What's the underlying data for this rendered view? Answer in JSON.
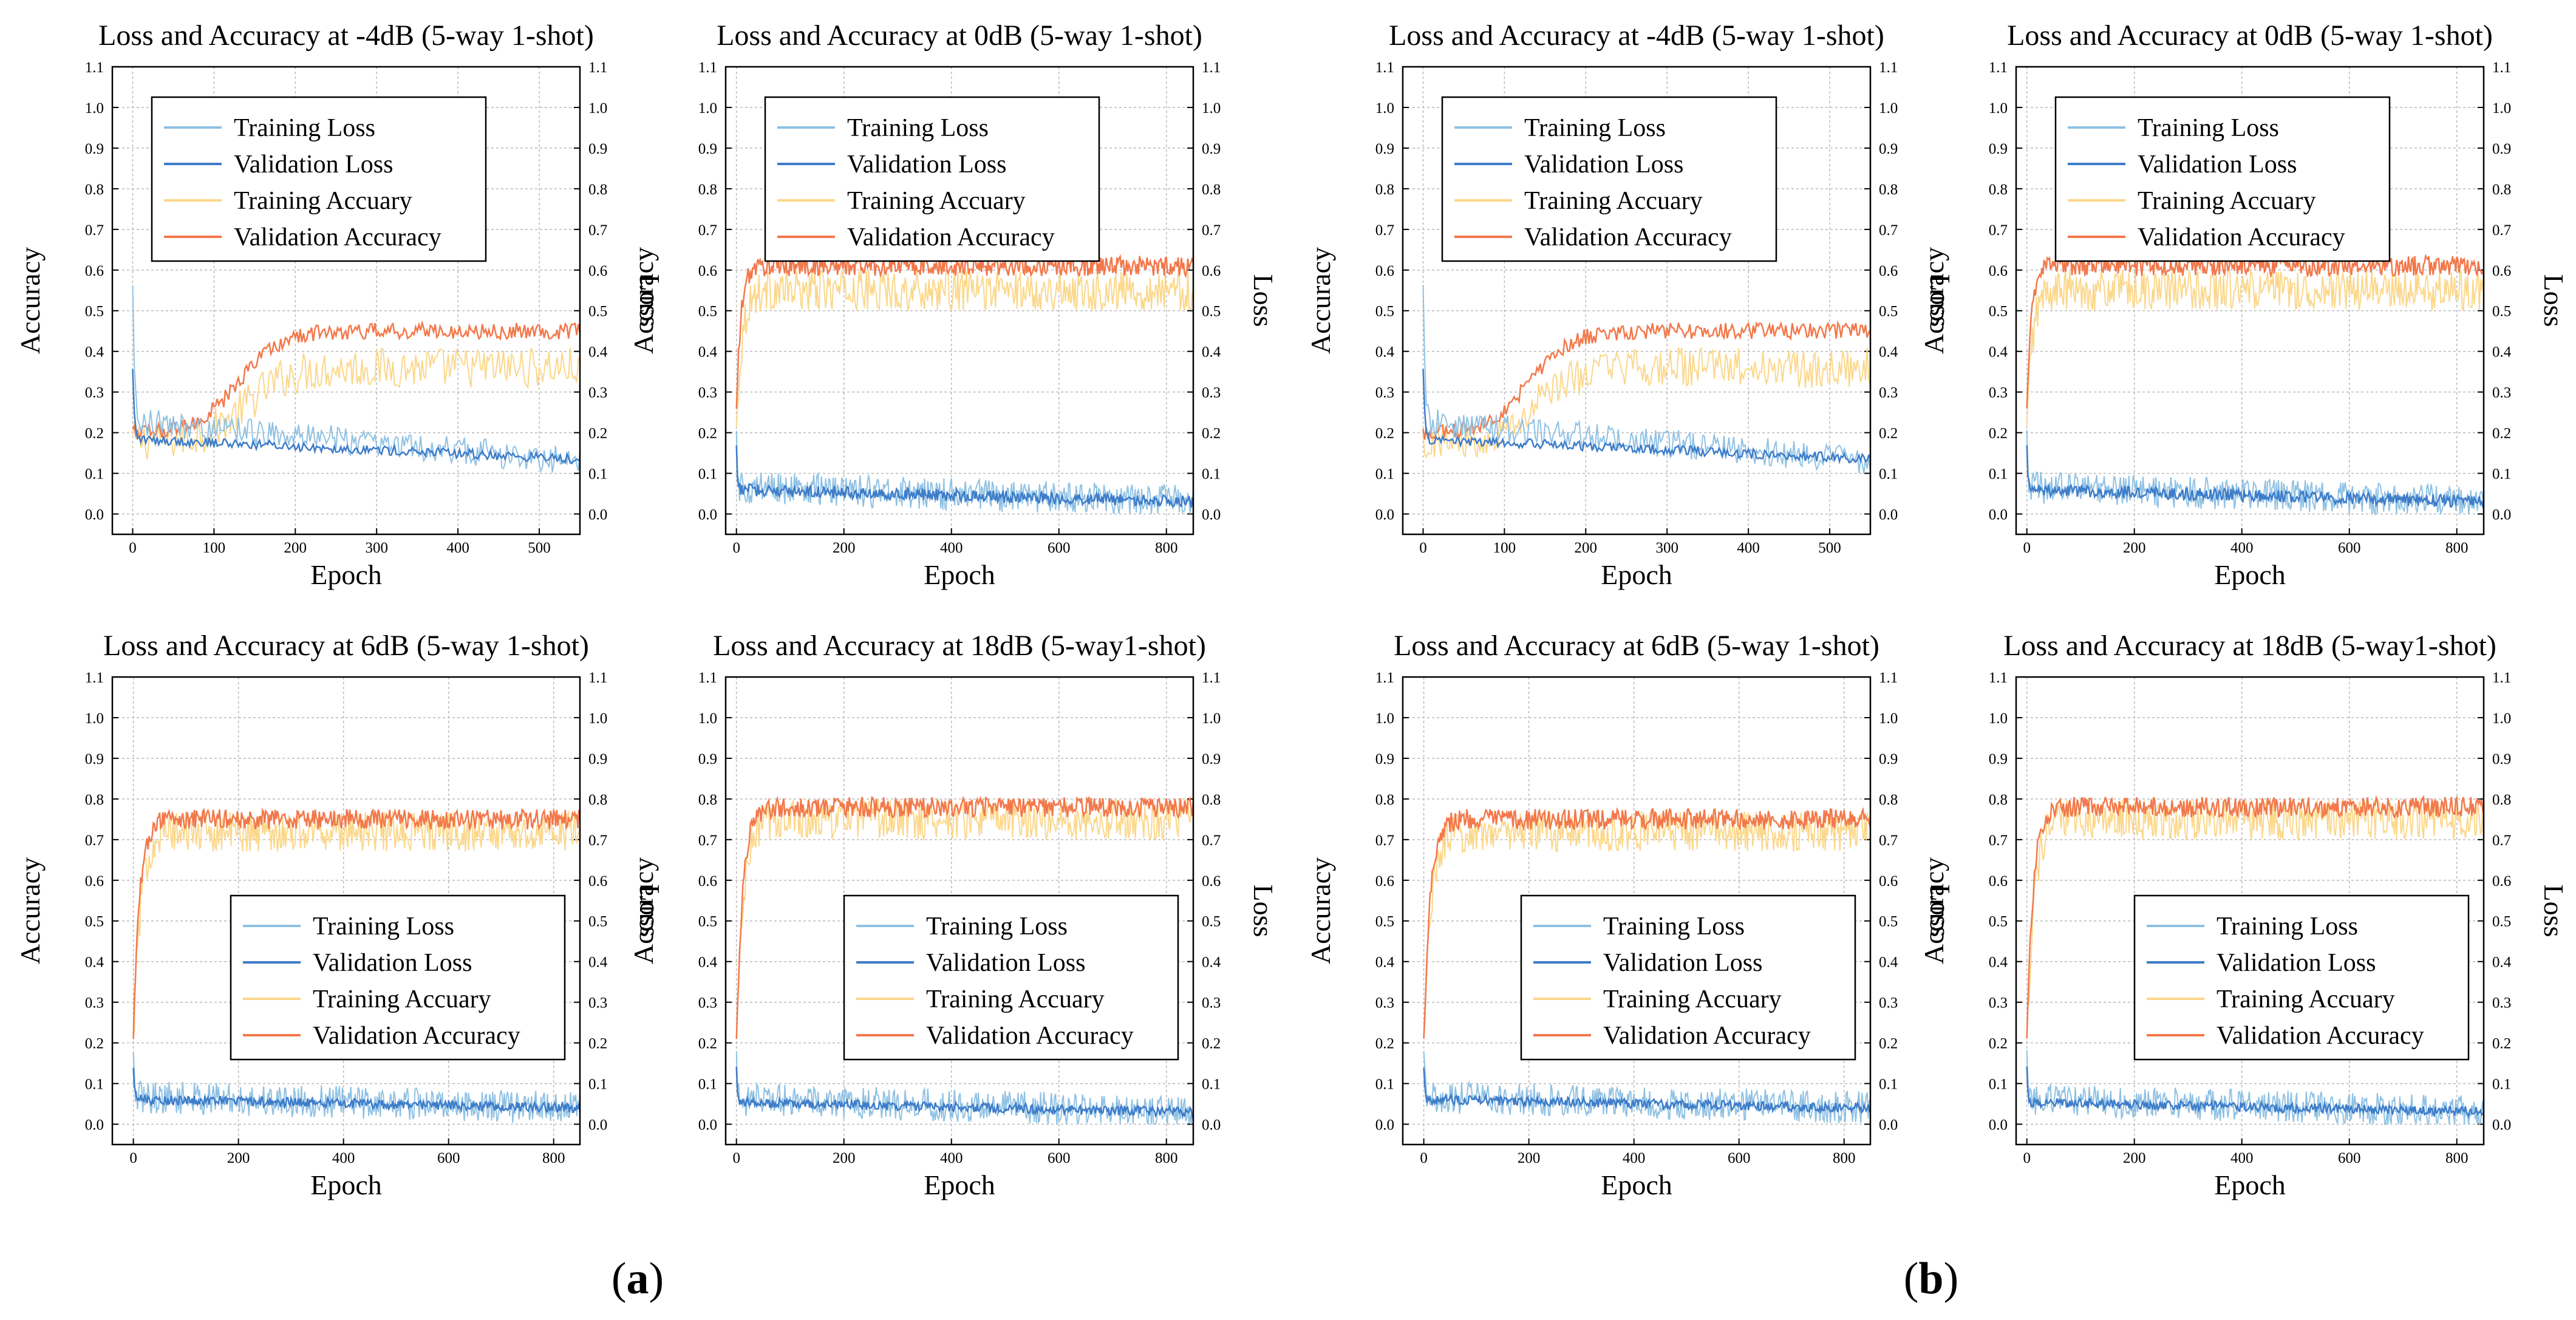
{
  "panel_labels": [
    {
      "open": "(",
      "letter": "a",
      "close": ")"
    },
    {
      "open": "(",
      "letter": "b",
      "close": ")"
    }
  ],
  "colors": {
    "training_loss": "#8fc1e3",
    "validation_loss": "#3d7cc9",
    "training_accuracy": "#fbd78a",
    "validation_accuracy": "#f2784b",
    "grid": "#b9b9b9"
  },
  "chart_data": [
    {
      "panel": "a",
      "row": 0,
      "col": 0,
      "type": "line",
      "title": "Loss and Accuracy at -4dB (5-way 1-shot)",
      "xlabel": "Epoch",
      "ylabel_left": "Accuracy",
      "ylabel_right": "Loss",
      "xlim": [
        -25,
        550
      ],
      "ylim": [
        -0.05,
        1.1
      ],
      "xticks": [
        "0",
        "100",
        "200",
        "300",
        "400",
        "500"
      ],
      "yticks": [
        "0.0",
        "0.1",
        "0.2",
        "0.3",
        "0.4",
        "0.5",
        "0.6",
        "0.7",
        "0.8",
        "0.9",
        "1.0",
        "1.1"
      ],
      "legend_position": "upper-left",
      "legend": [
        "Training Loss",
        "Validation Loss",
        "Training Accuary",
        "Validation Accuracy"
      ],
      "epochs": 550,
      "series_profile": {
        "training_loss": {
          "start": 0.45,
          "end": 0.13,
          "noise": 0.035
        },
        "validation_loss": {
          "start": 0.3,
          "end": 0.135,
          "noise": 0.012
        },
        "training_accuracy": {
          "start": 0.18,
          "plateau": 0.36,
          "rise_epoch": 140,
          "noise": 0.05
        },
        "validation_accuracy": {
          "start": 0.2,
          "plateau": 0.45,
          "rise_epoch": 130,
          "noise": 0.02
        }
      }
    },
    {
      "panel": "a",
      "row": 0,
      "col": 1,
      "type": "line",
      "title": "Loss and Accuracy at 0dB (5-way 1-shot)",
      "xlabel": "Epoch",
      "ylabel_left": "Accuracy",
      "ylabel_right": "Loss",
      "xlim": [
        -20,
        850
      ],
      "ylim": [
        -0.05,
        1.1
      ],
      "xticks": [
        "0",
        "200",
        "400",
        "600",
        "800"
      ],
      "yticks": [
        "0.0",
        "0.1",
        "0.2",
        "0.3",
        "0.4",
        "0.5",
        "0.6",
        "0.7",
        "0.8",
        "0.9",
        "1.0",
        "1.1"
      ],
      "legend_position": "upper-left",
      "legend": [
        "Training Loss",
        "Validation Loss",
        "Training Accuary",
        "Validation Accuracy"
      ],
      "epochs": 850,
      "series_profile": {
        "training_loss": {
          "start": 0.15,
          "end": 0.03,
          "noise": 0.04
        },
        "validation_loss": {
          "start": 0.13,
          "end": 0.03,
          "noise": 0.015
        },
        "training_accuracy": {
          "start": 0.2,
          "plateau": 0.55,
          "rise_epoch": 30,
          "noise": 0.05
        },
        "validation_accuracy": {
          "start": 0.25,
          "plateau": 0.61,
          "rise_epoch": 25,
          "noise": 0.025
        }
      }
    },
    {
      "panel": "a",
      "row": 1,
      "col": 0,
      "type": "line",
      "title": "Loss and Accuracy at 6dB (5-way 1-shot)",
      "xlabel": "Epoch",
      "ylabel_left": "Accuracy",
      "ylabel_right": "Loss",
      "xlim": [
        -40,
        850
      ],
      "ylim": [
        -0.05,
        1.1
      ],
      "xticks": [
        "0",
        "200",
        "400",
        "600",
        "800"
      ],
      "yticks": [
        "0.0",
        "0.1",
        "0.2",
        "0.3",
        "0.4",
        "0.5",
        "0.6",
        "0.7",
        "0.8",
        "0.9",
        "1.0",
        "1.1"
      ],
      "legend_position": "lower-right",
      "legend": [
        "Training Loss",
        "Validation Loss",
        "Training Accuary",
        "Validation Accuracy"
      ],
      "epochs": 850,
      "series_profile": {
        "training_loss": {
          "start": 0.13,
          "end": 0.04,
          "noise": 0.04
        },
        "validation_loss": {
          "start": 0.11,
          "end": 0.04,
          "noise": 0.012
        },
        "training_accuracy": {
          "start": 0.2,
          "plateau": 0.72,
          "rise_epoch": 40,
          "noise": 0.05
        },
        "validation_accuracy": {
          "start": 0.2,
          "plateau": 0.75,
          "rise_epoch": 35,
          "noise": 0.025
        }
      }
    },
    {
      "panel": "a",
      "row": 1,
      "col": 1,
      "type": "line",
      "title": "Loss and Accuracy at 18dB (5-way1-shot)",
      "xlabel": "Epoch",
      "ylabel_left": "Accuracy",
      "ylabel_right": "Loss",
      "xlim": [
        -20,
        850
      ],
      "ylim": [
        -0.05,
        1.1
      ],
      "xticks": [
        "0",
        "200",
        "400",
        "600",
        "800"
      ],
      "yticks": [
        "0.0",
        "0.1",
        "0.2",
        "0.3",
        "0.4",
        "0.5",
        "0.6",
        "0.7",
        "0.8",
        "0.9",
        "1.0",
        "1.1"
      ],
      "legend_position": "lower-right",
      "legend": [
        "Training Loss",
        "Validation Loss",
        "Training Accuary",
        "Validation Accuracy"
      ],
      "epochs": 850,
      "series_profile": {
        "training_loss": {
          "start": 0.13,
          "end": 0.03,
          "noise": 0.04
        },
        "validation_loss": {
          "start": 0.11,
          "end": 0.03,
          "noise": 0.012
        },
        "training_accuracy": {
          "start": 0.2,
          "plateau": 0.75,
          "rise_epoch": 40,
          "noise": 0.05
        },
        "validation_accuracy": {
          "start": 0.2,
          "plateau": 0.78,
          "rise_epoch": 35,
          "noise": 0.025
        }
      }
    },
    {
      "panel": "b",
      "row": 0,
      "col": 0,
      "type": "line",
      "title": "Loss and Accuracy at -4dB (5-way 1-shot)",
      "xlabel": "Epoch",
      "ylabel_left": "Accuracy",
      "ylabel_right": "Loss",
      "xlim": [
        -25,
        550
      ],
      "ylim": [
        -0.05,
        1.1
      ],
      "xticks": [
        "0",
        "100",
        "200",
        "300",
        "400",
        "500"
      ],
      "yticks": [
        "0.0",
        "0.1",
        "0.2",
        "0.3",
        "0.4",
        "0.5",
        "0.6",
        "0.7",
        "0.8",
        "0.9",
        "1.0",
        "1.1"
      ],
      "legend_position": "upper-left",
      "legend": [
        "Training Loss",
        "Validation Loss",
        "Training Accuary",
        "Validation Accuracy"
      ],
      "epochs": 550,
      "series_profile": {
        "training_loss": {
          "start": 0.45,
          "end": 0.13,
          "noise": 0.035
        },
        "validation_loss": {
          "start": 0.3,
          "end": 0.135,
          "noise": 0.012
        },
        "training_accuracy": {
          "start": 0.18,
          "plateau": 0.36,
          "rise_epoch": 140,
          "noise": 0.05
        },
        "validation_accuracy": {
          "start": 0.2,
          "plateau": 0.45,
          "rise_epoch": 130,
          "noise": 0.02
        }
      }
    },
    {
      "panel": "b",
      "row": 0,
      "col": 1,
      "type": "line",
      "title": "Loss and Accuracy at 0dB (5-way 1-shot)",
      "xlabel": "Epoch",
      "ylabel_left": "Accuracy",
      "ylabel_right": "Loss",
      "xlim": [
        -20,
        850
      ],
      "ylim": [
        -0.05,
        1.1
      ],
      "xticks": [
        "0",
        "200",
        "400",
        "600",
        "800"
      ],
      "yticks": [
        "0.0",
        "0.1",
        "0.2",
        "0.3",
        "0.4",
        "0.5",
        "0.6",
        "0.7",
        "0.8",
        "0.9",
        "1.0",
        "1.1"
      ],
      "legend_position": "upper-left",
      "legend": [
        "Training Loss",
        "Validation Loss",
        "Training Accuary",
        "Validation Accuracy"
      ],
      "epochs": 850,
      "series_profile": {
        "training_loss": {
          "start": 0.15,
          "end": 0.03,
          "noise": 0.04
        },
        "validation_loss": {
          "start": 0.13,
          "end": 0.03,
          "noise": 0.015
        },
        "training_accuracy": {
          "start": 0.2,
          "plateau": 0.55,
          "rise_epoch": 30,
          "noise": 0.05
        },
        "validation_accuracy": {
          "start": 0.25,
          "plateau": 0.61,
          "rise_epoch": 25,
          "noise": 0.025
        }
      }
    },
    {
      "panel": "b",
      "row": 1,
      "col": 0,
      "type": "line",
      "title": "Loss and Accuracy at 6dB (5-way 1-shot)",
      "xlabel": "Epoch",
      "ylabel_left": "Accuracy",
      "ylabel_right": "Loss",
      "xlim": [
        -40,
        850
      ],
      "ylim": [
        -0.05,
        1.1
      ],
      "xticks": [
        "0",
        "200",
        "400",
        "600",
        "800"
      ],
      "yticks": [
        "0.0",
        "0.1",
        "0.2",
        "0.3",
        "0.4",
        "0.5",
        "0.6",
        "0.7",
        "0.8",
        "0.9",
        "1.0",
        "1.1"
      ],
      "legend_position": "lower-right",
      "legend": [
        "Training Loss",
        "Validation Loss",
        "Training Accuary",
        "Validation Accuracy"
      ],
      "epochs": 850,
      "series_profile": {
        "training_loss": {
          "start": 0.13,
          "end": 0.04,
          "noise": 0.04
        },
        "validation_loss": {
          "start": 0.11,
          "end": 0.04,
          "noise": 0.012
        },
        "training_accuracy": {
          "start": 0.2,
          "plateau": 0.72,
          "rise_epoch": 40,
          "noise": 0.05
        },
        "validation_accuracy": {
          "start": 0.2,
          "plateau": 0.75,
          "rise_epoch": 35,
          "noise": 0.025
        }
      }
    },
    {
      "panel": "b",
      "row": 1,
      "col": 1,
      "type": "line",
      "title": "Loss and Accuracy at 18dB (5-way1-shot)",
      "xlabel": "Epoch",
      "ylabel_left": "Accuracy",
      "ylabel_right": "Loss",
      "xlim": [
        -20,
        850
      ],
      "ylim": [
        -0.05,
        1.1
      ],
      "xticks": [
        "0",
        "200",
        "400",
        "600",
        "800"
      ],
      "yticks": [
        "0.0",
        "0.1",
        "0.2",
        "0.3",
        "0.4",
        "0.5",
        "0.6",
        "0.7",
        "0.8",
        "0.9",
        "1.0",
        "1.1"
      ],
      "legend_position": "lower-right",
      "legend": [
        "Training Loss",
        "Validation Loss",
        "Training Accuary",
        "Validation Accuracy"
      ],
      "epochs": 850,
      "series_profile": {
        "training_loss": {
          "start": 0.13,
          "end": 0.03,
          "noise": 0.04
        },
        "validation_loss": {
          "start": 0.11,
          "end": 0.03,
          "noise": 0.012
        },
        "training_accuracy": {
          "start": 0.2,
          "plateau": 0.75,
          "rise_epoch": 40,
          "noise": 0.05
        },
        "validation_accuracy": {
          "start": 0.2,
          "plateau": 0.78,
          "rise_epoch": 35,
          "noise": 0.025
        }
      }
    }
  ]
}
